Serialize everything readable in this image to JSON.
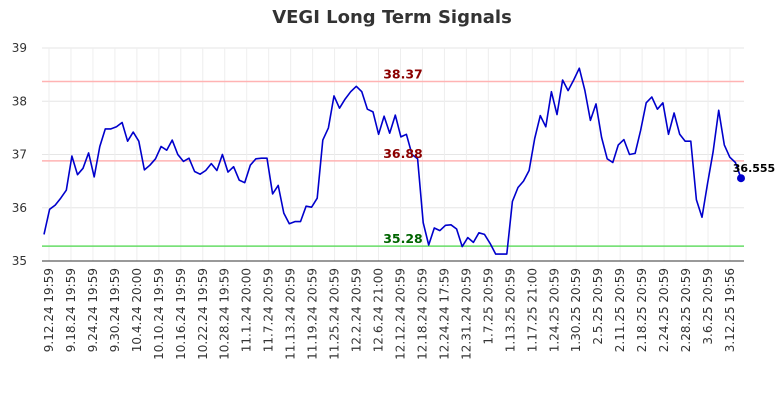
{
  "chart_data": {
    "type": "line",
    "title": "VEGI Long Term Signals",
    "xlabel": "",
    "ylabel": "",
    "ylim": [
      35,
      39
    ],
    "y_ticks": [
      35,
      36,
      37,
      38,
      39
    ],
    "grid": true,
    "x_tick_labels": [
      "9.12.24 19:59",
      "9.18.24 19:59",
      "9.24.24 19:59",
      "9.30.24 19:59",
      "10.4.24 20:00",
      "10.10.24 19:59",
      "10.16.24 19:59",
      "10.22.24 19:59",
      "10.28.24 19:59",
      "11.1.24 20:00",
      "11.7.24 20:59",
      "11.13.24 20:59",
      "11.19.24 20:59",
      "11.25.24 20:59",
      "12.2.24 20:59",
      "12.6.24 21:00",
      "12.12.24 20:59",
      "12.18.24 20:59",
      "12.24.24 17:59",
      "12.31.24 20:59",
      "1.7.25 20:59",
      "1.13.25 20:59",
      "1.17.25 21:00",
      "1.24.25 20:59",
      "1.30.25 20:59",
      "2.5.25 20:59",
      "2.11.25 20:59",
      "2.18.25 20:59",
      "2.24.25 20:59",
      "2.28.25 20:59",
      "3.6.25 20:59",
      "3.12.25 19:56"
    ],
    "reference_lines": [
      {
        "value": 38.37,
        "label": "38.37",
        "line_color": "#ffb3b3",
        "text_color": "#8b0000"
      },
      {
        "value": 36.88,
        "label": "36.88",
        "line_color": "#ffb3b3",
        "text_color": "#8b0000"
      },
      {
        "value": 35.28,
        "label": "35.28",
        "line_color": "#66dd66",
        "text_color": "#006400"
      }
    ],
    "series": [
      {
        "color": "#0000cc",
        "values": [
          35.5,
          35.97,
          36.05,
          36.18,
          36.33,
          36.97,
          36.62,
          36.74,
          37.03,
          36.58,
          37.15,
          37.48,
          37.48,
          37.52,
          37.6,
          37.25,
          37.42,
          37.25,
          36.71,
          36.8,
          36.92,
          37.15,
          37.08,
          37.27,
          37.0,
          36.87,
          36.93,
          36.68,
          36.63,
          36.7,
          36.83,
          36.7,
          37.0,
          36.67,
          36.77,
          36.52,
          36.47,
          36.8,
          36.92,
          36.93,
          36.93,
          36.26,
          36.42,
          35.9,
          35.7,
          35.74,
          35.74,
          36.03,
          36.01,
          36.18,
          37.27,
          37.5,
          38.1,
          37.87,
          38.04,
          38.18,
          38.28,
          38.18,
          37.85,
          37.8,
          37.38,
          37.72,
          37.4,
          37.74,
          37.33,
          37.38,
          37.0,
          36.92,
          35.72,
          35.3,
          35.62,
          35.57,
          35.67,
          35.68,
          35.6,
          35.27,
          35.44,
          35.35,
          35.53,
          35.5,
          35.33,
          35.13,
          35.13,
          35.13,
          36.12,
          36.38,
          36.5,
          36.7,
          37.3,
          37.73,
          37.52,
          38.18,
          37.75,
          38.4,
          38.2,
          38.4,
          38.62,
          38.2,
          37.64,
          37.95,
          37.32,
          36.92,
          36.85,
          37.18,
          37.28,
          37.0,
          37.02,
          37.45,
          37.97,
          38.08,
          37.85,
          37.97,
          37.38,
          37.78,
          37.38,
          37.25,
          37.25,
          36.15,
          35.82,
          36.45,
          37.05,
          37.83,
          37.18,
          36.95,
          36.85,
          36.555
        ]
      }
    ],
    "last_value_label": "36.555"
  }
}
